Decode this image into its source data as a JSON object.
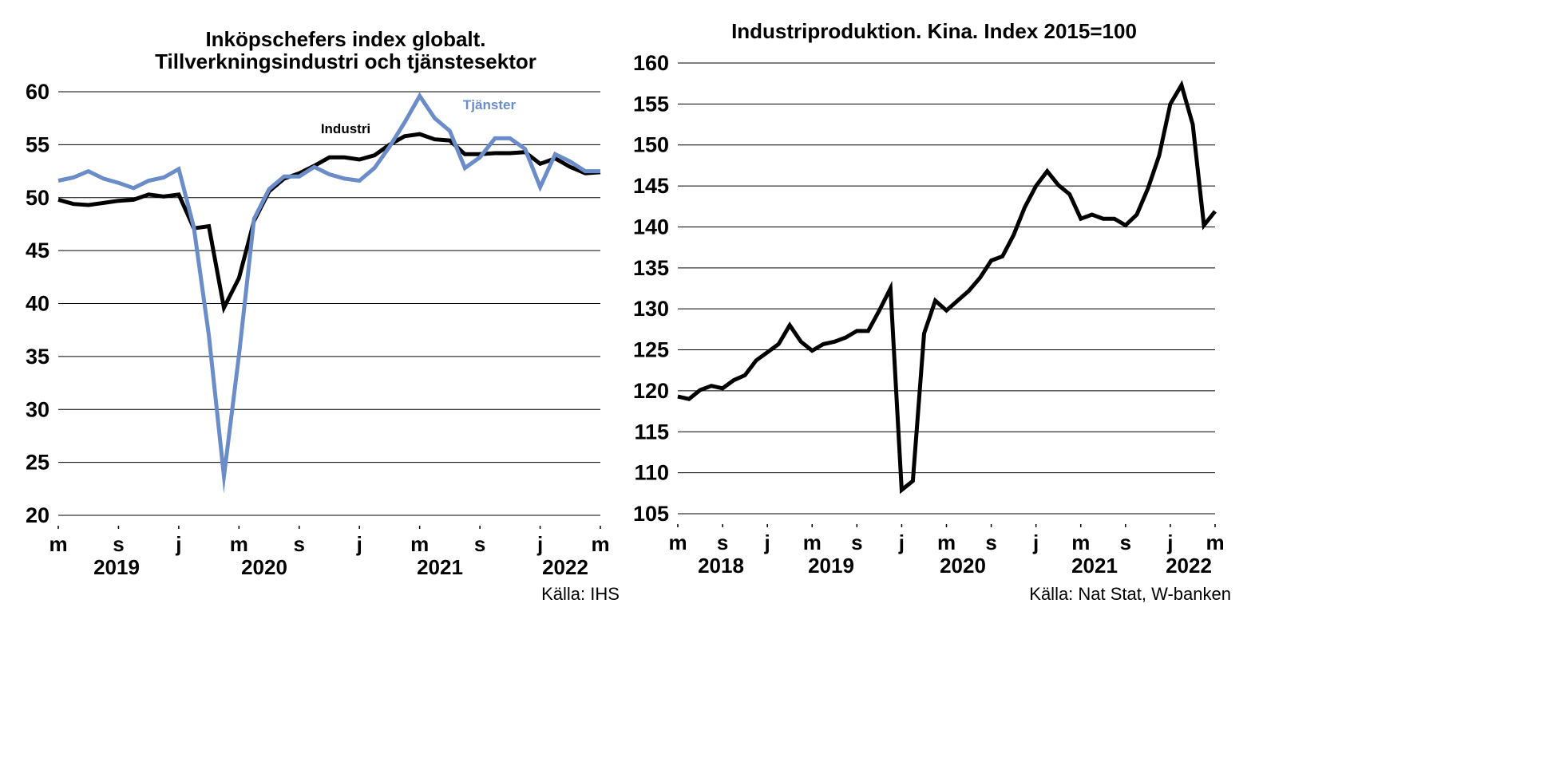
{
  "chart_data": [
    {
      "type": "line",
      "title": [
        "Inköpschefers index globalt.",
        "Tillverkningsindustri och tjänstesektor"
      ],
      "source": "Källa: IHS",
      "ylim": [
        20,
        60
      ],
      "yticks": [
        "20",
        "25",
        "30",
        "35",
        "40",
        "45",
        "50",
        "55",
        "60"
      ],
      "grid": "horizontal",
      "x_month_labels": [
        "m",
        "s",
        "j",
        "m",
        "s",
        "j",
        "m",
        "s",
        "j",
        "m"
      ],
      "x_year_labels": [
        "2019",
        "2020",
        "2021",
        "2022"
      ],
      "x": [
        "2019-05",
        "2019-06",
        "2019-07",
        "2019-08",
        "2019-09",
        "2019-10",
        "2019-11",
        "2019-12",
        "2020-01",
        "2020-02",
        "2020-03",
        "2020-04",
        "2020-05",
        "2020-06",
        "2020-07",
        "2020-08",
        "2020-09",
        "2020-10",
        "2020-11",
        "2020-12",
        "2021-01",
        "2021-02",
        "2021-03",
        "2021-04",
        "2021-05",
        "2021-06",
        "2021-07",
        "2021-08",
        "2021-09",
        "2021-10",
        "2021-11",
        "2021-12",
        "2022-01",
        "2022-02",
        "2022-03",
        "2022-04",
        "2022-05"
      ],
      "series": [
        {
          "name": "Industri",
          "color": "#000000",
          "values": [
            49.8,
            49.4,
            49.3,
            49.5,
            49.7,
            49.8,
            50.3,
            50.1,
            50.3,
            47.1,
            47.3,
            39.6,
            42.4,
            47.8,
            50.6,
            51.8,
            52.3,
            53.0,
            53.8,
            53.8,
            53.6,
            54.0,
            55.0,
            55.8,
            56.0,
            55.5,
            55.4,
            54.1,
            54.1,
            54.2,
            54.2,
            54.3,
            53.2,
            53.7,
            52.9,
            52.3,
            52.4
          ]
        },
        {
          "name": "Tjänster",
          "color": "#6a8cc8",
          "values": [
            51.6,
            51.9,
            52.5,
            51.8,
            51.4,
            50.9,
            51.6,
            51.9,
            52.7,
            47.2,
            37.0,
            23.7,
            35.1,
            48.0,
            50.8,
            52.0,
            52.0,
            52.9,
            52.2,
            51.8,
            51.6,
            52.8,
            54.8,
            57.1,
            59.6,
            57.5,
            56.3,
            52.8,
            53.8,
            55.6,
            55.6,
            54.6,
            51.0,
            54.1,
            53.4,
            52.5,
            52.5
          ]
        }
      ]
    },
    {
      "type": "line",
      "title": "Industriproduktion. Kina. Index 2015=100",
      "source": "Källa: Nat Stat, W-banken",
      "ylim": [
        105,
        160
      ],
      "yticks": [
        "105",
        "110",
        "115",
        "120",
        "125",
        "130",
        "135",
        "140",
        "145",
        "150",
        "155",
        "160"
      ],
      "grid": "horizontal",
      "x_month_labels": [
        "m",
        "s",
        "j",
        "m",
        "s",
        "j",
        "m",
        "s",
        "j",
        "m",
        "s",
        "j",
        "m"
      ],
      "x_year_labels": [
        "2018",
        "2019",
        "2020",
        "2021",
        "2022"
      ],
      "x": [
        "2018-05",
        "2018-06",
        "2018-07",
        "2018-08",
        "2018-09",
        "2018-10",
        "2018-11",
        "2018-12",
        "2019-01",
        "2019-02",
        "2019-03",
        "2019-04",
        "2019-05",
        "2019-06",
        "2019-07",
        "2019-08",
        "2019-09",
        "2019-10",
        "2019-11",
        "2019-12",
        "2020-01",
        "2020-02",
        "2020-03",
        "2020-04",
        "2020-05",
        "2020-06",
        "2020-07",
        "2020-08",
        "2020-09",
        "2020-10",
        "2020-11",
        "2020-12",
        "2021-01",
        "2021-02",
        "2021-03",
        "2021-04",
        "2021-05",
        "2021-06",
        "2021-07",
        "2021-08",
        "2021-09",
        "2021-10",
        "2021-11",
        "2021-12",
        "2022-01",
        "2022-02",
        "2022-03",
        "2022-04",
        "2022-05"
      ],
      "series": [
        {
          "name": "",
          "color": "#000000",
          "values": [
            119.3,
            119.0,
            120.1,
            120.6,
            120.3,
            121.3,
            121.9,
            123.7,
            124.7,
            125.7,
            128.0,
            126.0,
            124.9,
            125.7,
            126.0,
            126.5,
            127.3,
            127.3,
            129.8,
            132.5,
            107.9,
            109.0,
            127.0,
            131.0,
            129.8,
            131.0,
            132.2,
            133.8,
            135.9,
            136.4,
            139.0,
            142.4,
            145.0,
            146.8,
            145.1,
            144.0,
            141.0,
            141.5,
            141.0,
            141.0,
            140.2,
            141.5,
            144.7,
            148.7,
            155.0,
            157.3,
            152.5,
            140.2,
            141.9
          ]
        }
      ]
    }
  ],
  "annotations": {
    "industri_label": "Industri",
    "tjanster_label": "Tjänster"
  }
}
